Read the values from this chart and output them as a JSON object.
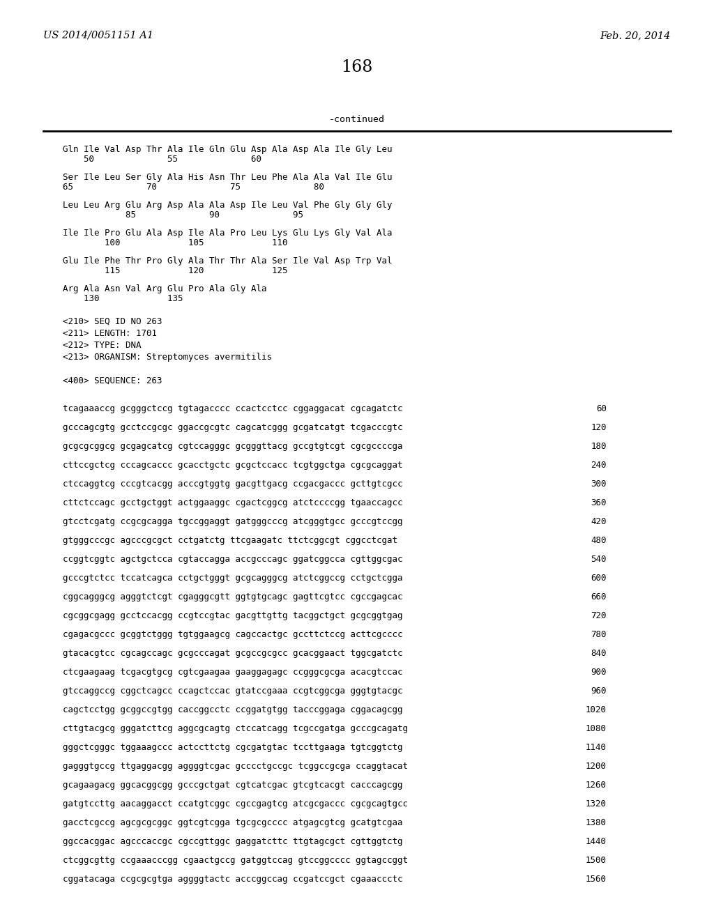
{
  "header_left": "US 2014/0051151 A1",
  "header_right": "Feb. 20, 2014",
  "page_number": "168",
  "continued_label": "-continued",
  "bg_color": "#ffffff",
  "text_color": "#000000",
  "protein_lines": [
    [
      "Gln Ile Val Asp Thr Ala Ile Gln Glu Asp Ala Asp Ala Ile Gly Leu",
      "    50              55              60"
    ],
    [
      "Ser Ile Leu Ser Gly Ala His Asn Thr Leu Phe Ala Ala Val Ile Glu",
      "65              70              75              80"
    ],
    [
      "Leu Leu Arg Glu Arg Asp Ala Ala Asp Ile Leu Val Phe Gly Gly Gly",
      "            85              90              95"
    ],
    [
      "Ile Ile Pro Glu Ala Asp Ile Ala Pro Leu Lys Glu Lys Gly Val Ala",
      "        100             105             110"
    ],
    [
      "Glu Ile Phe Thr Pro Gly Ala Thr Thr Ala Ser Ile Val Asp Trp Val",
      "        115             120             125"
    ],
    [
      "Arg Ala Asn Val Arg Glu Pro Ala Gly Ala",
      "    130             135"
    ]
  ],
  "seq_info_lines": [
    "<210> SEQ ID NO 263",
    "<211> LENGTH: 1701",
    "<212> TYPE: DNA",
    "<213> ORGANISM: Streptomyces avermitilis",
    "",
    "<400> SEQUENCE: 263"
  ],
  "dna_lines": [
    [
      "tcagaaaccg gcgggctccg tgtagacccc ccactcctcc cggaggacat cgcagatctc",
      "60"
    ],
    [
      "gcccagcgtg gcctccgcgc ggaccgcgtc cagcatcggg gcgatcatgt tcgacccgtc",
      "120"
    ],
    [
      "gcgcgcggcg gcgagcatcg cgtccagggc gcgggttacg gccgtgtcgt cgcgccccga",
      "180"
    ],
    [
      "cttccgctcg cccagcaccc gcacctgctc gcgctccacc tcgtggctga cgcgcaggat",
      "240"
    ],
    [
      "ctccaggtcg cccgtcacgg acccgtggtg gacgttgacg ccgacgaccc gcttgtcgcc",
      "300"
    ],
    [
      "cttctccagc gcctgctggt actggaaggc cgactcggcg atctccccgg tgaaccagcc",
      "360"
    ],
    [
      "gtcctcgatg ccgcgcagga tgccggaggt gatgggcccg atcgggtgcc gcccgtccgg",
      "420"
    ],
    [
      "gtgggcccgc agcccgcgct cctgatctg ttcgaagatc ttctcggcgt cggcctcgat",
      "480"
    ],
    [
      "ccggtcggtc agctgctcca cgtaccagga accgcccagc ggatcggcca cgttggcgac",
      "540"
    ],
    [
      "gcccgtctcc tccatcagca cctgctgggt gcgcagggcg atctcggccg cctgctcgga",
      "600"
    ],
    [
      "cggcagggcg agggtctcgt cgagggcgtt ggtgtgcagc gagttcgtcc cgccgagcac",
      "660"
    ],
    [
      "cgcggcgagg gcctccacgg ccgtccgtac gacgttgttg tacggctgct gcgcggtgag",
      "720"
    ],
    [
      "cgagacgccc gcggtctggg tgtggaagcg cagccactgc gccttctccg acttcgcccc",
      "780"
    ],
    [
      "gtacacgtcc cgcagccagc gcgcccagat gcgccgcgcc gcacggaact tggcgatctc",
      "840"
    ],
    [
      "ctcgaagaag tcgacgtgcg cgtcgaagaa gaaggagagc ccgggcgcga acacgtccac",
      "900"
    ],
    [
      "gtccaggccg cggctcagcc ccagctccac gtatccgaaa ccgtcggcga gggtgtacgc",
      "960"
    ],
    [
      "cagctcctgg gcggccgtgg caccggcctc ccggatgtgg tacccggaga cggacagcgg",
      "1020"
    ],
    [
      "cttgtacgcg gggatcttcg aggcgcagtg ctccatcagg tcgccgatga gcccgcagatg",
      "1080"
    ],
    [
      "gggctcgggc tggaaagccc actccttctg cgcgatgtac tccttgaaga tgtcggtctg",
      "1140"
    ],
    [
      "gagggtgccg ttgaggacgg aggggtcgac gcccctgccgc tcggccgcga ccaggtacat",
      "1200"
    ],
    [
      "gcagaagacg ggcacggcgg gcccgctgat cgtcatcgac gtcgtcacgt cacccagcgg",
      "1260"
    ],
    [
      "gatgtccttg aacaggacct ccatgtcggc cgccgagtcg atcgcgaccc cgcgcagtgcc",
      "1320"
    ],
    [
      "gacctcgccg agcgcgcggc ggtcgtcgga tgcgcgcccc atgagcgtcg gcatgtcgaa",
      "1380"
    ],
    [
      "ggccacggac agcccaccgc cgccgttggc gaggatcttc ttgtagcgct cgttggtctg",
      "1440"
    ],
    [
      "ctcggcgttg ccgaaacccgg cgaactgccg gatggtccag gtccggcccc ggtagccggt",
      "1500"
    ],
    [
      "cggatacaga ccgcgcgtga aggggtactc acccggccag ccgatccgct cgaaaccctc",
      "1560"
    ]
  ]
}
